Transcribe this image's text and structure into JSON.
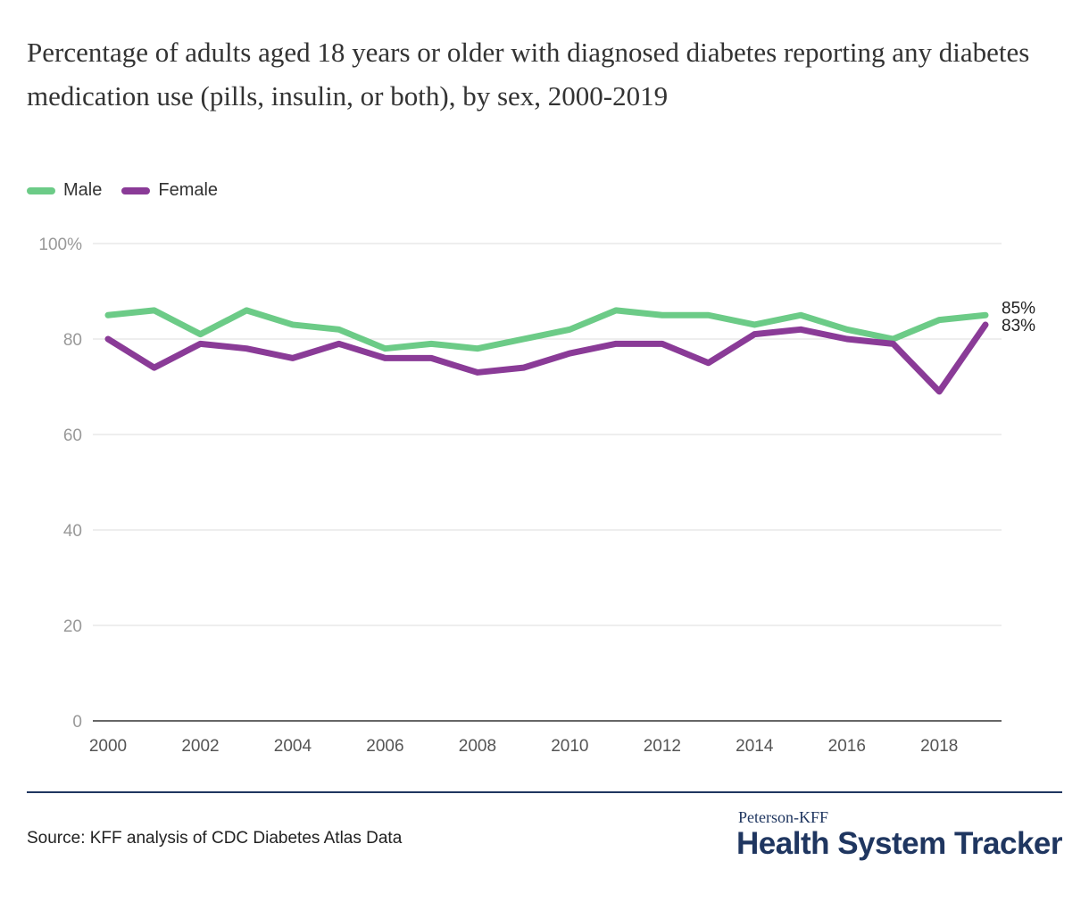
{
  "chart_data": {
    "type": "line",
    "title": "Percentage of adults aged 18 years or older with diagnosed diabetes reporting any diabetes medication use (pills, insulin, or both), by sex, 2000-2019",
    "x": [
      2000,
      2001,
      2002,
      2003,
      2004,
      2005,
      2006,
      2007,
      2008,
      2009,
      2010,
      2011,
      2012,
      2013,
      2014,
      2015,
      2016,
      2017,
      2018,
      2019
    ],
    "series": [
      {
        "name": "Male",
        "color": "#6ccb87",
        "values": [
          85,
          86,
          81,
          86,
          83,
          82,
          78,
          79,
          78,
          80,
          82,
          86,
          85,
          85,
          83,
          85,
          82,
          80,
          84,
          85
        ],
        "end_label": "85%"
      },
      {
        "name": "Female",
        "color": "#8a3b97",
        "values": [
          80,
          74,
          79,
          78,
          76,
          79,
          76,
          76,
          73,
          74,
          77,
          79,
          79,
          75,
          81,
          82,
          80,
          79,
          69,
          83
        ],
        "end_label": "83%"
      }
    ],
    "ylim": [
      0,
      100
    ],
    "y_ticks": [
      0,
      20,
      40,
      60,
      80,
      100
    ],
    "y_tick_labels": [
      "0",
      "20",
      "40",
      "60",
      "80",
      "100%"
    ],
    "x_ticks": [
      2000,
      2002,
      2004,
      2006,
      2008,
      2010,
      2012,
      2014,
      2016,
      2018
    ],
    "grid": true,
    "legend_position": "top-left"
  },
  "source": "Source: KFF analysis of CDC Diabetes Atlas Data",
  "brand": {
    "top": "Peterson-KFF",
    "main": "Health System Tracker"
  }
}
